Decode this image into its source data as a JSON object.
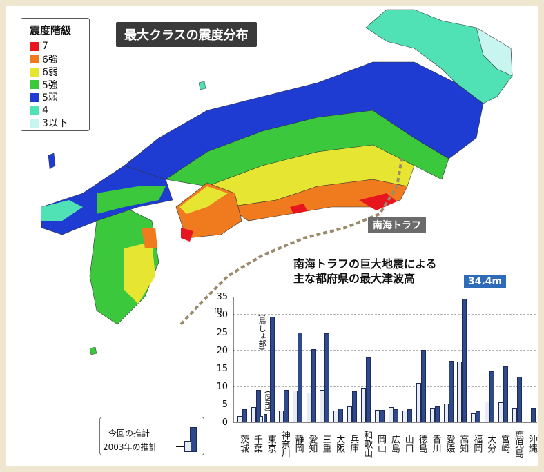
{
  "map": {
    "title": "最大クラスの震度分布",
    "trough_label": "南海トラフ",
    "legend": {
      "title": "震度階級",
      "items": [
        {
          "label": "7",
          "color": "#e8141e"
        },
        {
          "label": "6強",
          "color": "#f07a1e"
        },
        {
          "label": "6弱",
          "color": "#e6e632"
        },
        {
          "label": "5強",
          "color": "#3cc83c"
        },
        {
          "label": "5弱",
          "color": "#1e3cd2"
        },
        {
          "label": "4",
          "color": "#50e1b4"
        },
        {
          "label": "3以下",
          "color": "#c8f5f0"
        }
      ]
    }
  },
  "chart_data": {
    "type": "bar",
    "title_line1": "南海トラフの巨大地震による",
    "title_line2": "主な都府県の最大津波高",
    "ylabel": "m",
    "ylim": [
      0,
      35
    ],
    "yticks": [
      "35",
      "30",
      "25",
      "20",
      "15",
      "10",
      "5",
      "0"
    ],
    "categories": [
      "茨城",
      "千葉",
      "東京",
      "神奈川",
      "静岡",
      "愛知",
      "三重",
      "大阪",
      "兵庫",
      "和歌山",
      "岡山",
      "広島",
      "山口",
      "徳島",
      "香川",
      "愛媛",
      "高知",
      "福岡",
      "大分",
      "宮崎",
      "鹿児島",
      "沖縄"
    ],
    "series": [
      {
        "name": "2003年の推計",
        "values": [
          1.8,
          4.2,
          null,
          3.3,
          8.9,
          8.2,
          9.1,
          3.3,
          4.5,
          9.6,
          3.5,
          4.2,
          3.3,
          10.9,
          4.0,
          5.1,
          17.0,
          2.5,
          5.8,
          5.6,
          4.1,
          null
        ]
      },
      {
        "name": "今回の推計",
        "values": [
          3.6,
          9.0,
          29.5,
          9.0,
          25.0,
          20.3,
          24.8,
          3.9,
          8.7,
          18.1,
          3.5,
          3.7,
          3.6,
          20.2,
          4.4,
          17.2,
          34.4,
          3.1,
          14.2,
          15.5,
          12.7,
          4.0
        ]
      },
      {
        "name": "東京(区部)",
        "values": [
          null,
          null,
          1.8,
          null,
          null,
          null,
          null,
          null,
          null,
          null,
          null,
          null,
          null,
          null,
          null,
          null,
          null,
          null,
          null,
          null,
          null,
          null
        ]
      },
      {
        "name": "東京(区部)2003",
        "values": [
          null,
          null,
          2.4,
          null,
          null,
          null,
          null,
          null,
          null,
          null,
          null,
          null,
          null,
          null,
          null,
          null,
          null,
          null,
          null,
          null,
          null,
          null
        ]
      }
    ],
    "notes": {
      "tokyo_islands": "(島しょ部)",
      "tokyo_ward": "(区部)"
    },
    "callout": "34.4m",
    "key": {
      "current": "今回の推計",
      "previous": "2003年の推計"
    }
  }
}
